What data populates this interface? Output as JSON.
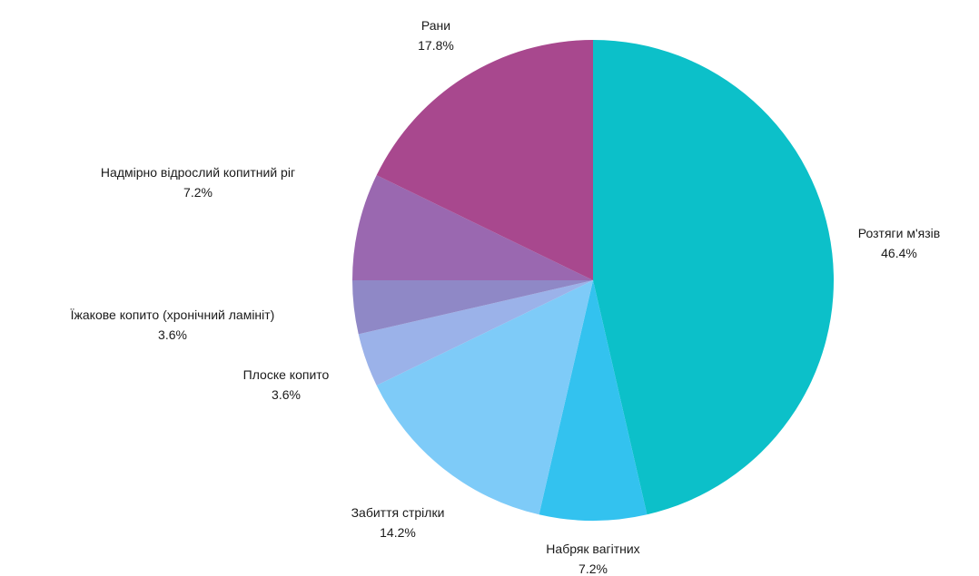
{
  "chart_data": {
    "type": "pie",
    "title": "",
    "start_angle_deg": 0,
    "direction": "clockwise",
    "slices": [
      {
        "label": "Розтяги м'язів",
        "value": 46.4,
        "percent_label": "46.4%",
        "color": "#0cc0c9"
      },
      {
        "label": "Набряк вагітних",
        "value": 7.2,
        "percent_label": "7.2%",
        "color": "#33c2ef"
      },
      {
        "label": "Забиття стрілки",
        "value": 14.2,
        "percent_label": "14.2%",
        "color": "#7ecbf8"
      },
      {
        "label": "Плоске копито",
        "value": 3.6,
        "percent_label": "3.6%",
        "color": "#9bb2e9"
      },
      {
        "label": "Їжакове копито (хронічний ламініт)",
        "value": 3.6,
        "percent_label": "3.6%",
        "color": "#8f88c6"
      },
      {
        "label": "Надмірно відрослий копитний ріг",
        "value": 7.2,
        "percent_label": "7.2%",
        "color": "#9a68b0"
      },
      {
        "label": "Рани",
        "value": 17.8,
        "percent_label": "17.8%",
        "color": "#a8488e"
      }
    ]
  }
}
